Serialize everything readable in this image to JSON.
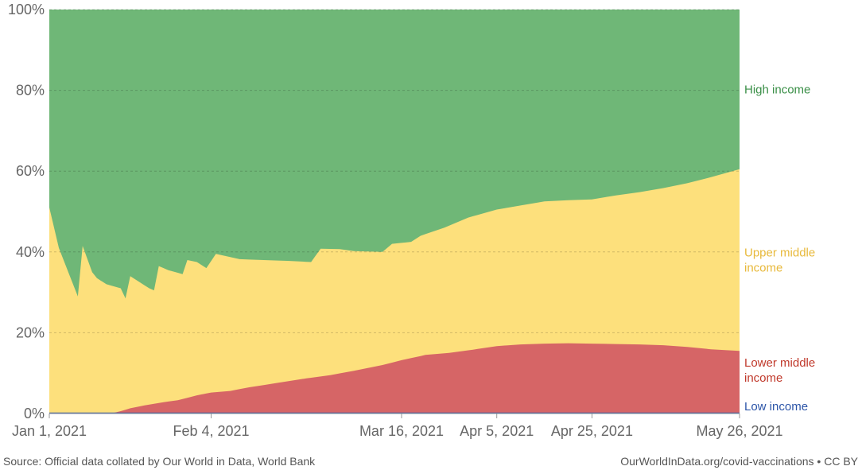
{
  "chart_data": {
    "type": "area",
    "stacked_percent": true,
    "ylim": [
      0,
      100
    ],
    "y_tick_labels": [
      "0%",
      "20%",
      "40%",
      "60%",
      "80%",
      "100%"
    ],
    "y_ticks": [
      0,
      20,
      40,
      60,
      80,
      100
    ],
    "x_range": [
      "2021-01-01",
      "2021-05-26"
    ],
    "x_tick_labels": [
      {
        "date": "2021-01-01",
        "label": "Jan 1, 2021"
      },
      {
        "date": "2021-02-04",
        "label": "Feb 4, 2021"
      },
      {
        "date": "2021-03-16",
        "label": "Mar 16, 2021"
      },
      {
        "date": "2021-04-05",
        "label": "Apr 5, 2021"
      },
      {
        "date": "2021-04-25",
        "label": "Apr 25, 2021"
      },
      {
        "date": "2021-05-26",
        "label": "May 26, 2021"
      }
    ],
    "grid": "horizontal dashed",
    "legend_placement": "right",
    "series": [
      {
        "name": "Low income",
        "color": "#2c55a8",
        "points": [
          [
            "2021-01-01",
            0
          ],
          [
            "2021-04-01",
            0
          ],
          [
            "2021-05-26",
            0.2
          ]
        ]
      },
      {
        "name": "Lower middle income",
        "color": "#d66566",
        "points": [
          [
            "2021-01-01",
            0
          ],
          [
            "2021-01-14",
            0
          ],
          [
            "2021-01-16",
            0.6
          ],
          [
            "2021-01-18",
            1.3
          ],
          [
            "2021-01-21",
            2.0
          ],
          [
            "2021-01-25",
            2.8
          ],
          [
            "2021-01-28",
            3.3
          ],
          [
            "2021-02-01",
            4.5
          ],
          [
            "2021-02-04",
            5.2
          ],
          [
            "2021-02-08",
            5.6
          ],
          [
            "2021-02-12",
            6.5
          ],
          [
            "2021-02-18",
            7.6
          ],
          [
            "2021-02-24",
            8.7
          ],
          [
            "2021-03-01",
            9.5
          ],
          [
            "2021-03-06",
            10.6
          ],
          [
            "2021-03-12",
            12.0
          ],
          [
            "2021-03-16",
            13.2
          ],
          [
            "2021-03-21",
            14.5
          ],
          [
            "2021-03-26",
            15.0
          ],
          [
            "2021-03-31",
            15.8
          ],
          [
            "2021-04-05",
            16.7
          ],
          [
            "2021-04-10",
            17.1
          ],
          [
            "2021-04-15",
            17.3
          ],
          [
            "2021-04-20",
            17.4
          ],
          [
            "2021-04-25",
            17.3
          ],
          [
            "2021-04-30",
            17.2
          ],
          [
            "2021-05-05",
            17.1
          ],
          [
            "2021-05-10",
            16.9
          ],
          [
            "2021-05-15",
            16.5
          ],
          [
            "2021-05-20",
            15.9
          ],
          [
            "2021-05-26",
            15.5
          ]
        ]
      },
      {
        "name": "Upper middle income",
        "color": "#fde07c",
        "points": [
          [
            "2021-01-01",
            51
          ],
          [
            "2021-01-03",
            41
          ],
          [
            "2021-01-05",
            35
          ],
          [
            "2021-01-07",
            29
          ],
          [
            "2021-01-08",
            41.5
          ],
          [
            "2021-01-10",
            35
          ],
          [
            "2021-01-11",
            33.5
          ],
          [
            "2021-01-13",
            32
          ],
          [
            "2021-01-16",
            31
          ],
          [
            "2021-01-17",
            28.5
          ],
          [
            "2021-01-18",
            34
          ],
          [
            "2021-01-20",
            32.5
          ],
          [
            "2021-01-22",
            31
          ],
          [
            "2021-01-23",
            30.5
          ],
          [
            "2021-01-24",
            36.5
          ],
          [
            "2021-01-26",
            35.5
          ],
          [
            "2021-01-29",
            34.5
          ],
          [
            "2021-01-30",
            38
          ],
          [
            "2021-02-01",
            37.5
          ],
          [
            "2021-02-03",
            36
          ],
          [
            "2021-02-05",
            39.5
          ],
          [
            "2021-02-10",
            38.2
          ],
          [
            "2021-02-15",
            38.0
          ],
          [
            "2021-02-20",
            37.8
          ],
          [
            "2021-02-25",
            37.5
          ],
          [
            "2021-02-27",
            40.8
          ],
          [
            "2021-03-03",
            40.7
          ],
          [
            "2021-03-06",
            40.2
          ],
          [
            "2021-03-12",
            40.0
          ],
          [
            "2021-03-14",
            42.0
          ],
          [
            "2021-03-18",
            42.5
          ],
          [
            "2021-03-20",
            44.0
          ],
          [
            "2021-03-25",
            46.0
          ],
          [
            "2021-03-30",
            48.5
          ],
          [
            "2021-04-05",
            50.5
          ],
          [
            "2021-04-10",
            51.5
          ],
          [
            "2021-04-15",
            52.5
          ],
          [
            "2021-04-20",
            52.8
          ],
          [
            "2021-04-25",
            53.0
          ],
          [
            "2021-04-30",
            54.0
          ],
          [
            "2021-05-05",
            54.8
          ],
          [
            "2021-05-10",
            55.8
          ],
          [
            "2021-05-15",
            57.0
          ],
          [
            "2021-05-20",
            58.5
          ],
          [
            "2021-05-26",
            60.5
          ]
        ]
      },
      {
        "name": "High income",
        "color": "#6fb777",
        "points": [
          [
            "2021-01-01",
            100
          ],
          [
            "2021-05-26",
            100
          ]
        ]
      }
    ],
    "series_labels": [
      {
        "series": "High income",
        "lines": [
          "High income"
        ]
      },
      {
        "series": "Upper middle income",
        "lines": [
          "Upper middle",
          "income"
        ]
      },
      {
        "series": "Lower middle income",
        "lines": [
          "Lower middle",
          "income"
        ]
      },
      {
        "series": "Low income",
        "lines": [
          "Low income"
        ]
      }
    ],
    "source": "Source: Official data collated by Our World in Data, World Bank",
    "credit": "OurWorldInData.org/covid-vaccinations • CC BY"
  }
}
